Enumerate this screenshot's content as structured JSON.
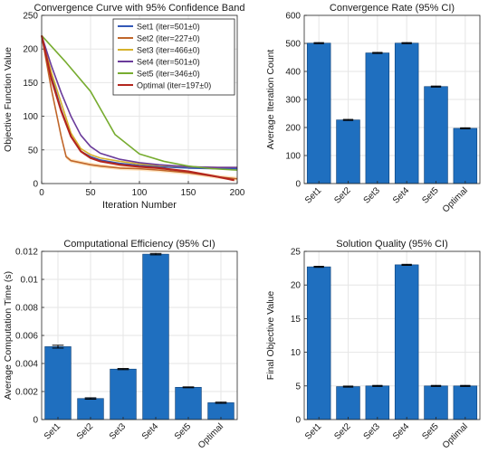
{
  "figure": {
    "colors": {
      "bar": "#1f6fbf",
      "bar_edge": "#0d3f75",
      "grid": "#e6e6e6",
      "axis": "#262626",
      "text": "#1a1a1a",
      "band": "#ffcf8f"
    }
  },
  "chart_data": [
    {
      "type": "line",
      "title": "Convergence Curve with 95% Confidence Band",
      "xlabel": "Iteration Number",
      "ylabel": "Objective Function Value",
      "xlim": [
        0,
        200
      ],
      "ylim": [
        0,
        250
      ],
      "xticks": [
        0,
        50,
        100,
        150,
        200
      ],
      "yticks": [
        0,
        50,
        100,
        150,
        200,
        250
      ],
      "grid": true,
      "legend_position": "top-right",
      "series": [
        {
          "name": "Set1 (iter=501±0)",
          "color": "#3358b7",
          "x": [
            0,
            10,
            20,
            30,
            40,
            50,
            60,
            80,
            100,
            120,
            150,
            180,
            200
          ],
          "y": [
            220,
            160,
            110,
            70,
            48,
            40,
            35,
            30,
            27,
            25,
            23,
            22,
            22
          ]
        },
        {
          "name": "Set2 (iter=227±0)",
          "color": "#c0662a",
          "x": [
            0,
            10,
            20,
            25,
            30,
            40,
            50,
            60,
            80,
            100,
            120,
            150,
            180,
            200
          ],
          "y": [
            220,
            140,
            70,
            40,
            34,
            31,
            28,
            26,
            23,
            22,
            20,
            16,
            10,
            7
          ]
        },
        {
          "name": "Set3 (iter=466±0)",
          "color": "#d6b22c",
          "x": [
            0,
            10,
            20,
            30,
            40,
            50,
            60,
            80,
            100,
            120,
            150,
            180,
            200
          ],
          "y": [
            220,
            165,
            120,
            75,
            52,
            43,
            38,
            33,
            29,
            27,
            25,
            24,
            24
          ]
        },
        {
          "name": "Set4 (iter=501±0)",
          "color": "#6a3b9a",
          "x": [
            0,
            10,
            20,
            30,
            40,
            50,
            60,
            80,
            100,
            120,
            150,
            180,
            200
          ],
          "y": [
            220,
            175,
            135,
            100,
            72,
            55,
            45,
            36,
            31,
            28,
            25,
            24,
            24
          ]
        },
        {
          "name": "Set5 (iter=346±0)",
          "color": "#77ac30",
          "x": [
            0,
            25,
            50,
            75,
            100,
            125,
            150,
            175,
            200
          ],
          "y": [
            220,
            180,
            137,
            73,
            44,
            33,
            26,
            22,
            20
          ]
        },
        {
          "name": "Optimal (iter=197±0)",
          "color": "#b3261e",
          "x": [
            0,
            10,
            20,
            30,
            40,
            50,
            60,
            80,
            100,
            120,
            150,
            180,
            197
          ],
          "y": [
            220,
            155,
            108,
            70,
            48,
            38,
            33,
            28,
            25,
            23,
            18,
            10,
            5
          ]
        }
      ]
    },
    {
      "type": "bar",
      "title": "Convergence Rate (95% CI)",
      "xlabel": "",
      "ylabel": "Average Iteration Count",
      "categories": [
        "Set1",
        "Set2",
        "Set3",
        "Set4",
        "Set5",
        "Optimal"
      ],
      "values": [
        501,
        227,
        466,
        501,
        346,
        197
      ],
      "ylim": [
        0,
        600
      ],
      "yticks": [
        0,
        100,
        200,
        300,
        400,
        500,
        600
      ],
      "grid": true
    },
    {
      "type": "bar",
      "title": "Computational Efficiency (95% CI)",
      "xlabel": "",
      "ylabel": "Average Computation Time (s)",
      "categories": [
        "Set1",
        "Set2",
        "Set3",
        "Set4",
        "Set5",
        "Optimal"
      ],
      "values": [
        0.0052,
        0.0015,
        0.0036,
        0.0118,
        0.0023,
        0.0012
      ],
      "errors": [
        0.0001,
        5e-05,
        4e-05,
        5e-05,
        3e-05,
        4e-05
      ],
      "ylim": [
        0,
        0.012
      ],
      "yticks": [
        0,
        0.002,
        0.004,
        0.006,
        0.008,
        0.01,
        0.012
      ],
      "grid": true
    },
    {
      "type": "bar",
      "title": "Solution Quality (95% CI)",
      "xlabel": "",
      "ylabel": "Final Objective Value",
      "categories": [
        "Set1",
        "Set2",
        "Set3",
        "Set4",
        "Set5",
        "Optimal"
      ],
      "values": [
        22.7,
        4.9,
        5.0,
        23.0,
        5.0,
        5.0
      ],
      "ylim": [
        0,
        25
      ],
      "yticks": [
        0,
        5,
        10,
        15,
        20,
        25
      ],
      "grid": true
    }
  ]
}
